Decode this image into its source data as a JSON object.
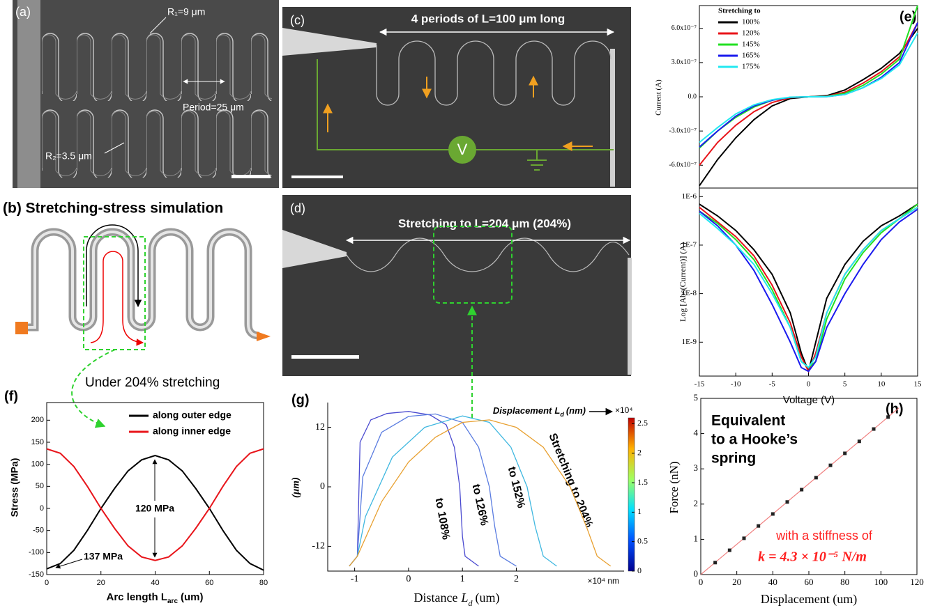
{
  "panels": {
    "a": {
      "label": "(a)",
      "r1": "R₁=9 μm",
      "r2": "R₂=3.5 μm",
      "period": "Period=25 μm"
    },
    "b": {
      "title": "(b) Stretching-stress simulation",
      "caption": "Under 204% stretching"
    },
    "c": {
      "label": "(c)",
      "length": "4 periods of L=100 μm long",
      "meter": "V"
    },
    "d": {
      "label": "(d)",
      "length": "Stretching to L=204 μm (204%)"
    }
  },
  "chart_data": [
    {
      "type": "line",
      "panel_label": "(e)",
      "legend_title": "Stretching to",
      "ylabel": "Current (A)",
      "x": [
        -15,
        -12.5,
        -10,
        -7.5,
        -5,
        -2.5,
        0,
        2.5,
        5,
        7.5,
        10,
        12.5,
        15
      ],
      "xlim": [
        -15,
        15
      ],
      "ylim": [
        -8e-07,
        8e-07
      ],
      "yticks": [
        {
          "value": 6e-07,
          "label": "6.0x10⁻⁷"
        },
        {
          "value": 3e-07,
          "label": "3.0x10⁻⁷"
        },
        {
          "value": 0,
          "label": "0.0"
        },
        {
          "value": -3e-07,
          "label": "-3.0x10⁻⁷"
        },
        {
          "value": -6e-07,
          "label": "-6.0x10⁻⁷"
        }
      ],
      "series": [
        {
          "name": "100%",
          "color": "#000000",
          "values": [
            -7.8e-07,
            -5.5e-07,
            -3.6e-07,
            -2e-07,
            -8e-08,
            -1.5e-08,
            0,
            1e-08,
            6e-08,
            1.5e-07,
            2.5e-07,
            3.8e-07,
            6e-07
          ]
        },
        {
          "name": "120%",
          "color": "#e8141a",
          "values": [
            -6e-07,
            -4e-07,
            -2.5e-07,
            -1.3e-07,
            -5e-08,
            -8e-09,
            0,
            5e-09,
            4e-08,
            1.2e-07,
            2.2e-07,
            3.5e-07,
            6.5e-07
          ]
        },
        {
          "name": "145%",
          "color": "#22e022",
          "values": [
            -4.5e-07,
            -3e-07,
            -1.8e-07,
            -9e-08,
            -3e-08,
            -5e-09,
            0,
            3e-09,
            3e-08,
            1e-07,
            2e-07,
            3.3e-07,
            8e-07
          ]
        },
        {
          "name": "165%",
          "color": "#1a1aee",
          "values": [
            -4.4e-07,
            -3e-07,
            -1.7e-07,
            -8e-08,
            -3e-08,
            -4e-09,
            0,
            2e-09,
            2e-08,
            8e-08,
            1.7e-07,
            3e-07,
            6.5e-07
          ]
        },
        {
          "name": "175%",
          "color": "#22e8f0",
          "values": [
            -4e-07,
            -2.7e-07,
            -1.5e-07,
            -7e-08,
            -2.5e-08,
            -3e-09,
            0,
            2e-09,
            2e-08,
            8e-08,
            1.6e-07,
            2.8e-07,
            5.6e-07
          ]
        }
      ]
    },
    {
      "type": "line",
      "ylabel": "Log [Abs(Current)] (A)",
      "xlabel": "Voltage (V)",
      "log_y": true,
      "x": [
        -15,
        -12.5,
        -10,
        -7.5,
        -5,
        -2.5,
        -1,
        0,
        1,
        2.5,
        5,
        7.5,
        10,
        12.5,
        15
      ],
      "xlim": [
        -15,
        15
      ],
      "xticks": [
        -15,
        -10,
        -5,
        0,
        5,
        10,
        15
      ],
      "ylim": [
        2e-10,
        1.5e-06
      ],
      "yticks": [
        {
          "value": 1e-06,
          "label": "1E-6"
        },
        {
          "value": 1e-07,
          "label": "1E-7"
        },
        {
          "value": 1e-08,
          "label": "1E-8"
        },
        {
          "value": 1e-09,
          "label": "1E-9"
        }
      ],
      "series": [
        {
          "color": "#000000",
          "values": [
            7e-07,
            4e-07,
            2e-07,
            8e-08,
            2.5e-08,
            4e-09,
            6e-10,
            2.5e-10,
            1e-09,
            8e-09,
            4e-08,
            1.2e-07,
            2.5e-07,
            4e-07,
            7e-07
          ]
        },
        {
          "color": "#e8141a",
          "values": [
            6e-07,
            3e-07,
            1.5e-07,
            6e-08,
            1.5e-08,
            2.5e-09,
            5e-10,
            2.5e-10,
            6e-10,
            4e-09,
            2.5e-08,
            8e-08,
            2e-07,
            3.5e-07,
            6e-07
          ]
        },
        {
          "color": "#22e022",
          "values": [
            5e-07,
            2.8e-07,
            1.3e-07,
            5e-08,
            1.2e-08,
            2e-09,
            4e-10,
            3e-10,
            4e-10,
            3e-09,
            2e-08,
            7e-08,
            1.8e-07,
            3.5e-07,
            7e-07
          ]
        },
        {
          "color": "#1a1aee",
          "values": [
            5e-07,
            2.5e-07,
            1e-07,
            3e-08,
            6e-09,
            1e-09,
            3e-10,
            2.5e-10,
            4e-10,
            2e-09,
            1e-08,
            4e-08,
            1.3e-07,
            3e-07,
            5.5e-07
          ]
        },
        {
          "color": "#22e8f0",
          "values": [
            4.5e-07,
            2.2e-07,
            1e-07,
            4e-08,
            1e-08,
            2e-09,
            4e-10,
            3e-10,
            5e-10,
            4e-09,
            2.5e-08,
            8e-08,
            2e-07,
            3.5e-07,
            6e-07
          ]
        }
      ]
    },
    {
      "type": "line",
      "panel_label": "(f)",
      "ylabel": "Stress (MPa)",
      "xlabel": {
        "text": "Arc length L",
        "sub": "arc",
        "unit": "(um)"
      },
      "x": [
        0,
        5,
        10,
        15,
        20,
        25,
        30,
        35,
        40,
        45,
        50,
        55,
        60,
        65,
        70,
        75,
        80
      ],
      "xlim": [
        0,
        80
      ],
      "ylim": [
        -150,
        240
      ],
      "xticks": [
        0,
        20,
        40,
        60,
        80
      ],
      "yticks": [
        -150,
        -100,
        -50,
        0,
        50,
        100,
        150,
        200
      ],
      "series": [
        {
          "name": "along outer edge",
          "color": "#000000",
          "values": [
            -137,
            -125,
            -95,
            -50,
            0,
            45,
            85,
            110,
            120,
            110,
            85,
            45,
            0,
            -50,
            -95,
            -125,
            -140
          ]
        },
        {
          "name": "along inner edge",
          "color": "#e8141a",
          "values": [
            135,
            125,
            95,
            50,
            0,
            -45,
            -85,
            -110,
            -118,
            -110,
            -85,
            -45,
            0,
            50,
            95,
            125,
            135
          ]
        }
      ],
      "annotations": [
        "120 MPa",
        "137 MPa"
      ]
    },
    {
      "type": "line",
      "panel_label": "(g)",
      "ylabel": "(μm)",
      "xlabel": {
        "text": "Distance",
        "var": "L",
        "sub": "d",
        "unit": "(um)"
      },
      "color_label": {
        "text": "Displacement",
        "var": "L",
        "sub": "d",
        "unit": "(nm)"
      },
      "color_multiplier": "×10⁴",
      "x_multiplier": "×10⁴ nm",
      "xlim": [
        -1.5,
        4.0
      ],
      "ylim": [
        -17,
        17
      ],
      "xticks": [
        -1,
        0,
        1,
        2
      ],
      "yticks": [
        -12,
        0,
        12
      ],
      "colorbar": {
        "lim": [
          0,
          2.6
        ],
        "ticks": [
          0,
          0.5,
          1,
          1.5,
          2,
          2.5
        ]
      },
      "series": [
        {
          "name": "to 108%",
          "color": "#4a4ad0",
          "x": [
            -1.1,
            -0.95,
            -0.9,
            -0.7,
            -0.4,
            0,
            0.4,
            0.7,
            0.85,
            0.95,
            1.0,
            1.05,
            1.3
          ],
          "values": [
            -16,
            -14,
            9,
            13.5,
            14.8,
            15.2,
            14.5,
            12.5,
            8,
            0,
            -10,
            -14,
            -16
          ]
        },
        {
          "name": "to 126%",
          "color": "#5a7ce0",
          "x": [
            -1.1,
            -0.95,
            -0.85,
            -0.5,
            0,
            0.5,
            1.0,
            1.3,
            1.5,
            1.6,
            1.7,
            2.0
          ],
          "values": [
            -16,
            -14,
            2,
            11,
            14.2,
            14.7,
            13,
            8,
            0,
            -8,
            -14,
            -16
          ]
        },
        {
          "name": "to 152%",
          "color": "#40b8e0",
          "x": [
            -1.1,
            -0.95,
            -0.8,
            -0.3,
            0.3,
            1.0,
            1.5,
            1.9,
            2.2,
            2.35,
            2.5,
            2.75
          ],
          "values": [
            -16,
            -14,
            -6,
            6,
            12,
            14.3,
            13,
            8,
            0,
            -8,
            -14,
            -16
          ]
        },
        {
          "name": "Stretching to 204%",
          "color": "#e8a030",
          "x": [
            -1.1,
            -0.95,
            -0.5,
            0,
            0.5,
            1.0,
            1.5,
            2.0,
            2.5,
            3.0,
            3.3,
            3.5,
            3.75
          ],
          "values": [
            -16,
            -14,
            -3,
            5,
            10,
            13,
            13.5,
            12,
            8,
            0,
            -8,
            -14,
            -16
          ]
        }
      ]
    },
    {
      "type": "scatter",
      "panel_label": "(h)",
      "ylabel": "Force (nN)",
      "xlabel": "Displacement (um)",
      "x": [
        8,
        16,
        24,
        32,
        40,
        48,
        56,
        64,
        72,
        80,
        88,
        96,
        104
      ],
      "values": [
        0.34,
        0.69,
        1.03,
        1.38,
        1.72,
        2.06,
        2.41,
        2.75,
        3.1,
        3.44,
        3.78,
        4.13,
        4.47
      ],
      "color": "#222222",
      "fit": {
        "color": "#f08080",
        "x": [
          0,
          110
        ],
        "values": [
          0,
          4.73
        ]
      },
      "xlim": [
        0,
        120
      ],
      "ylim": [
        0,
        5
      ],
      "xticks": [
        0,
        20,
        40,
        60,
        80,
        100,
        120
      ],
      "yticks": [
        0,
        1,
        2,
        3,
        4,
        5
      ],
      "annotations": {
        "equivalent": [
          "Equivalent",
          "to a Hooke’s",
          "spring"
        ],
        "stiffness": "with a stiffness of",
        "k": "k = 4.3 × 10⁻⁵ N/m"
      }
    }
  ]
}
